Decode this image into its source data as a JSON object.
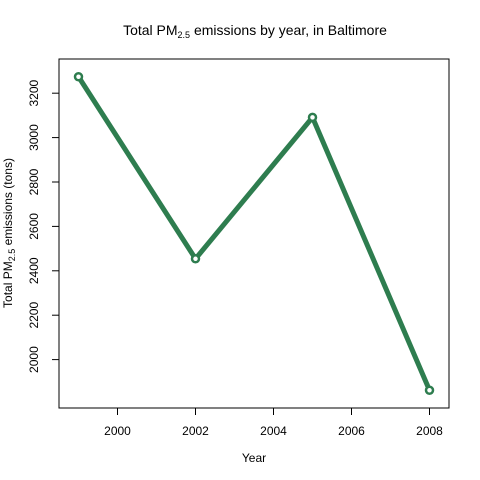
{
  "chart_data": {
    "type": "line",
    "title_prefix": "Total  PM",
    "title_subscript": "2.5",
    "title_suffix": " emissions by year, in Baltimore",
    "xlabel": "Year",
    "ylabel_prefix": "Total PM",
    "ylabel_subscript": "2.5",
    "ylabel_suffix": " emissions (tons)",
    "x": [
      1999,
      2002,
      2005,
      2008
    ],
    "y": [
      3274,
      2454,
      3091,
      1862
    ],
    "xlim": [
      1998.5,
      2008.5
    ],
    "ylim": [
      1782,
      3354
    ],
    "xticks": [
      2000,
      2002,
      2004,
      2006,
      2008
    ],
    "yticks": [
      2000,
      2200,
      2400,
      2600,
      2800,
      3000,
      3200
    ],
    "grid": false,
    "line_color": "#2e7d4f"
  }
}
